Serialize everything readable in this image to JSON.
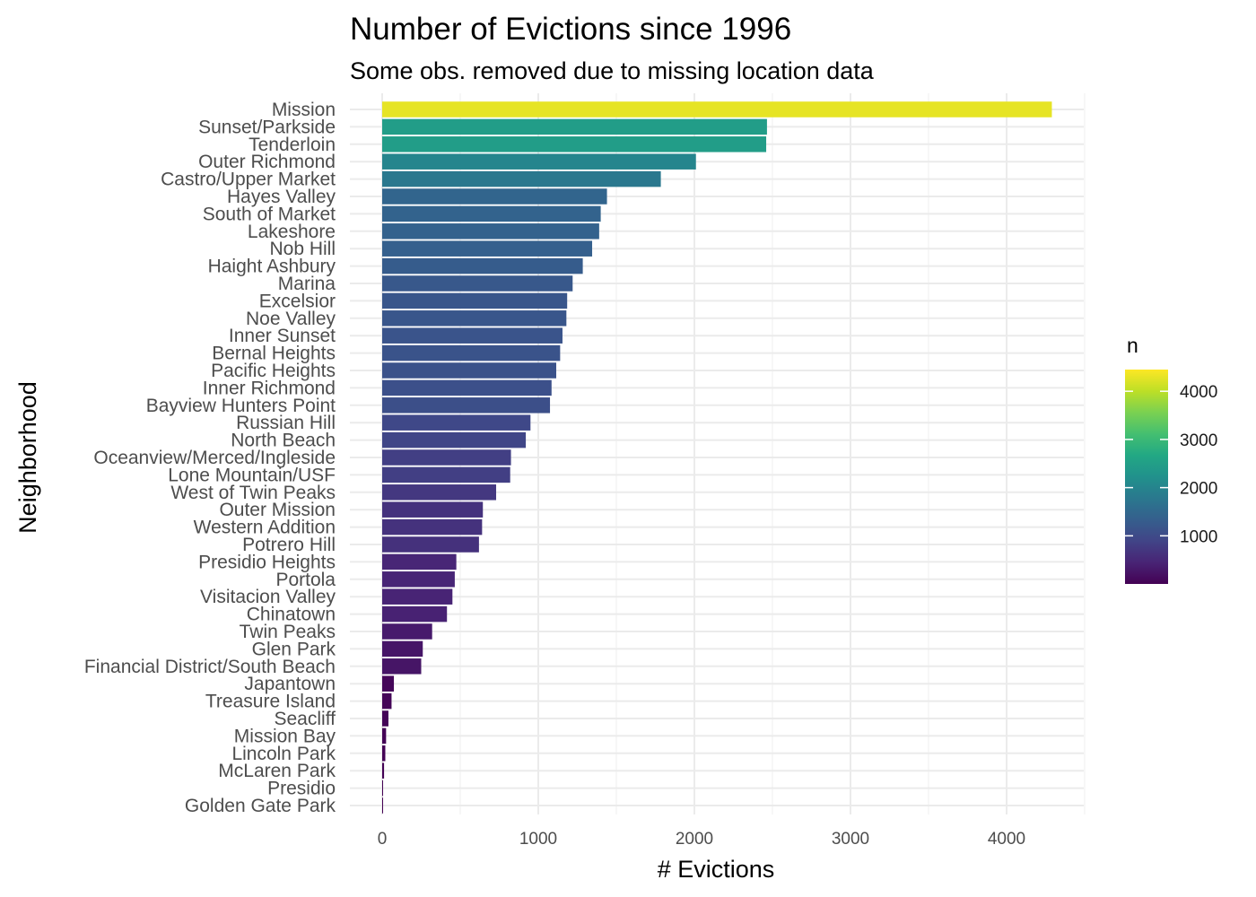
{
  "chart_data": {
    "type": "bar",
    "orientation": "horizontal",
    "title": "Number of Evictions since 1996",
    "subtitle": "Some obs. removed due to missing location data",
    "xlabel": "# Evictions",
    "ylabel": "Neighborhood",
    "xlim": [
      0,
      4500
    ],
    "xticks": [
      0,
      1000,
      2000,
      3000,
      4000
    ],
    "grid": true,
    "colormap": "viridis",
    "legend": {
      "title": "n",
      "placement": "right",
      "range": [
        1,
        4450
      ],
      "ticks": [
        1000,
        2000,
        3000,
        4000
      ]
    },
    "categories": [
      "Mission",
      "Sunset/Parkside",
      "Tenderloin",
      "Outer Richmond",
      "Castro/Upper Market",
      "Hayes Valley",
      "South of Market",
      "Lakeshore",
      "Nob Hill",
      "Haight Ashbury",
      "Marina",
      "Excelsior",
      "Noe Valley",
      "Inner Sunset",
      "Bernal Heights",
      "Pacific Heights",
      "Inner Richmond",
      "Bayview Hunters Point",
      "Russian Hill",
      "North Beach",
      "Oceanview/Merced/Ingleside",
      "Lone Mountain/USF",
      "West of Twin Peaks",
      "Outer Mission",
      "Western Addition",
      "Potrero Hill",
      "Presidio Heights",
      "Portola",
      "Visitacion Valley",
      "Chinatown",
      "Twin Peaks",
      "Glen Park",
      "Financial District/South Beach",
      "Japantown",
      "Treasure Island",
      "Seacliff",
      "Mission Bay",
      "Lincoln Park",
      "McLaren Park",
      "Presidio",
      "Golden Gate Park"
    ],
    "values": [
      4290,
      2465,
      2460,
      2010,
      1785,
      1440,
      1400,
      1390,
      1345,
      1285,
      1220,
      1185,
      1180,
      1155,
      1140,
      1115,
      1085,
      1075,
      950,
      920,
      825,
      820,
      730,
      645,
      640,
      620,
      475,
      465,
      450,
      415,
      320,
      260,
      250,
      75,
      60,
      40,
      25,
      20,
      12,
      5,
      3
    ]
  }
}
